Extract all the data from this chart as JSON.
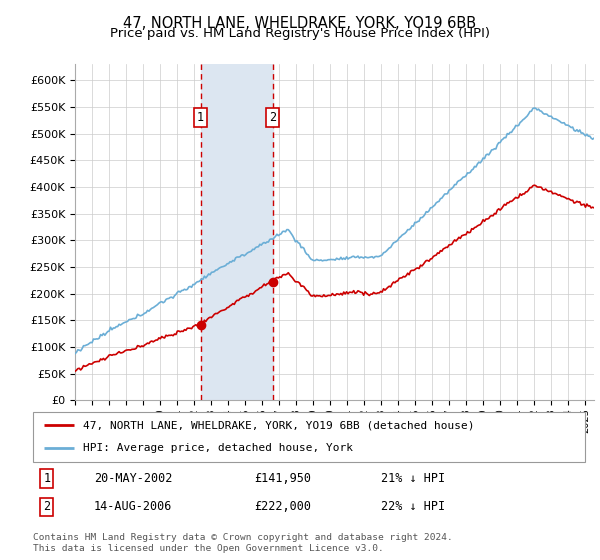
{
  "title": "47, NORTH LANE, WHELDRAKE, YORK, YO19 6BB",
  "subtitle": "Price paid vs. HM Land Registry's House Price Index (HPI)",
  "ylim": [
    0,
    630000
  ],
  "yticks": [
    0,
    50000,
    100000,
    150000,
    200000,
    250000,
    300000,
    350000,
    400000,
    450000,
    500000,
    550000,
    600000
  ],
  "ytick_labels": [
    "£0",
    "£50K",
    "£100K",
    "£150K",
    "£200K",
    "£250K",
    "£300K",
    "£350K",
    "£400K",
    "£450K",
    "£500K",
    "£550K",
    "£600K"
  ],
  "xlim_start": 1995.0,
  "xlim_end": 2025.5,
  "sale1_year": 2002.38,
  "sale1_price": 141950,
  "sale2_year": 2006.62,
  "sale2_price": 222000,
  "hpi_color": "#6baed6",
  "price_color": "#cc0000",
  "shade_color": "#dce6f1",
  "legend_label1": "47, NORTH LANE, WHELDRAKE, YORK, YO19 6BB (detached house)",
  "legend_label2": "HPI: Average price, detached house, York",
  "ann1_date": "20-MAY-2002",
  "ann1_price": "£141,950",
  "ann1_hpi": "21% ↓ HPI",
  "ann2_date": "14-AUG-2006",
  "ann2_price": "£222,000",
  "ann2_hpi": "22% ↓ HPI",
  "footer1": "Contains HM Land Registry data © Crown copyright and database right 2024.",
  "footer2": "This data is licensed under the Open Government Licence v3.0."
}
